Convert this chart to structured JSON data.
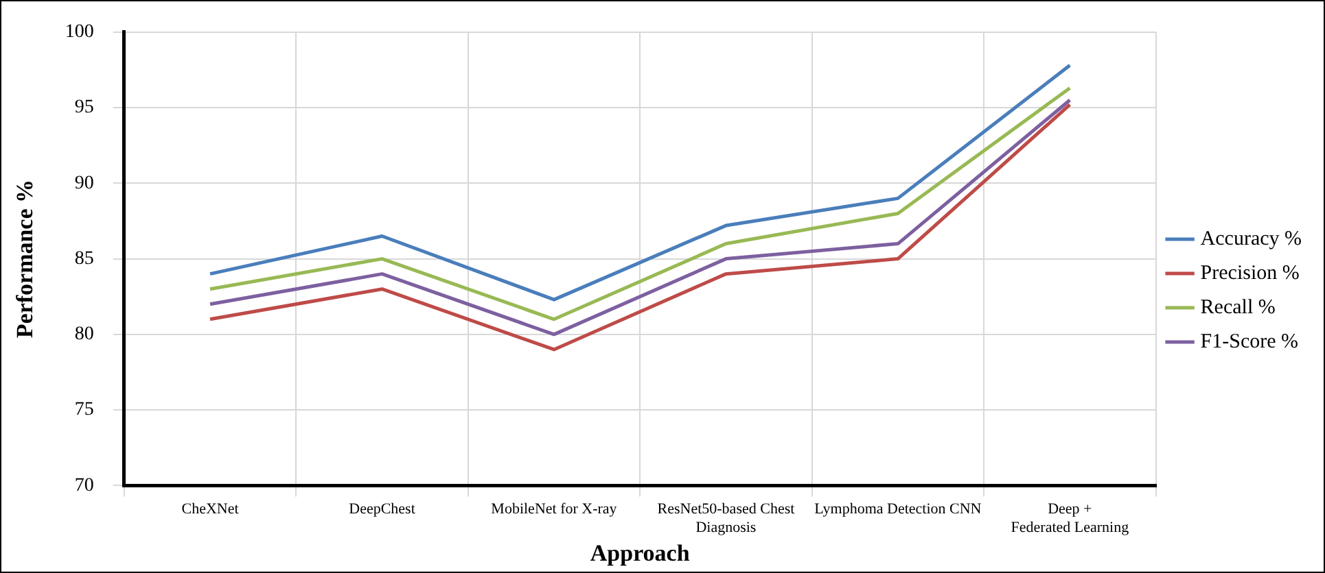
{
  "chart_data": {
    "type": "line",
    "xlabel": "Approach",
    "ylabel": "Performance %",
    "categories": [
      "CheXNet",
      "DeepChest",
      "MobileNet for X-ray",
      "ResNet50-based Chest Diagnosis",
      "Lymphoma Detection CNN",
      "Deep + Federated Learning"
    ],
    "series": [
      {
        "name": "Accuracy %",
        "color": "#4a7ebb",
        "values": [
          84,
          86.5,
          82.3,
          87.2,
          89,
          97.8
        ]
      },
      {
        "name": "Precision %",
        "color": "#be4b48",
        "values": [
          81,
          83,
          79,
          84,
          85,
          95.2
        ]
      },
      {
        "name": "Recall %",
        "color": "#98b954",
        "values": [
          83,
          85,
          81,
          86,
          88,
          96.3
        ]
      },
      {
        "name": "F1-Score %",
        "color": "#7d60a0",
        "values": [
          82,
          84,
          80,
          85,
          86,
          95.5
        ]
      }
    ],
    "ylim": [
      70,
      100
    ],
    "yticks": [
      70,
      75,
      80,
      85,
      90,
      95,
      100
    ],
    "grid": true,
    "legend": "right",
    "marker": "none",
    "line_style": "solid"
  }
}
